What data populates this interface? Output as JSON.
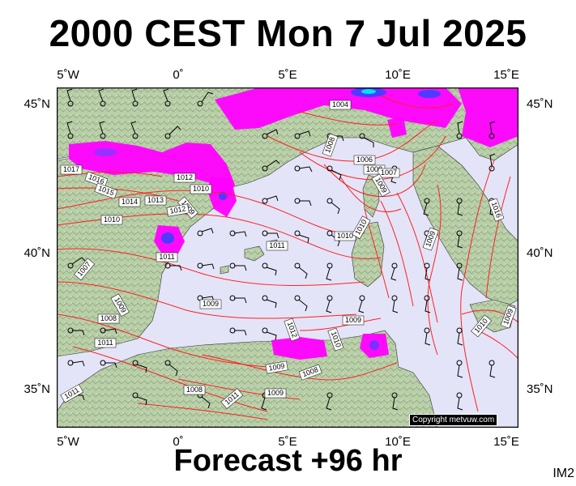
{
  "title": "2000 CEST Mon 7 Jul 2025",
  "footer": "Forecast +96 hr",
  "image_code": "IM2",
  "copyright": "Copyright metvuw.com",
  "lon_labels": [
    "5˚W",
    "0˚",
    "5˚E",
    "10˚E",
    "15˚E"
  ],
  "lat_labels": [
    "45˚N",
    "40˚N",
    "35˚N"
  ],
  "isobar_labels": [
    "1004",
    "1008",
    "1006",
    "1008",
    "1007",
    "1009",
    "1017",
    "1016",
    "1015",
    "1012",
    "1010",
    "1014",
    "1013",
    "1009",
    "1010",
    "1011",
    "1011",
    "1010",
    "1010",
    "1009",
    "1012",
    "1009",
    "1007",
    "1008",
    "1009",
    "1011",
    "1009",
    "1012",
    "1010",
    "1009",
    "1008",
    "1008",
    "1011",
    "1009",
    "1011",
    "1010",
    "1009",
    "1016"
  ],
  "colors": {
    "sea": "#e4e4f8",
    "land": "#b9cfa8",
    "isobar": "#ff2020",
    "rain_magenta": "#ff00ff",
    "rain_blue": "#4b3cff",
    "rain_cyan": "#00e0ff"
  }
}
